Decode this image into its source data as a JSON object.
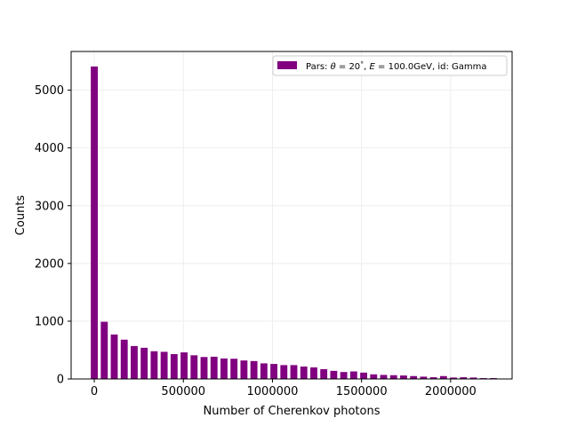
{
  "chart_data": {
    "type": "bar",
    "xlabel": "Number of Cherenkov photons",
    "ylabel": "Counts",
    "xlim": [
      -130000,
      2345000
    ],
    "ylim": [
      0,
      5670
    ],
    "grid": true,
    "legend_position": "top-right",
    "bar_color": "#800080",
    "bin_width": 56000,
    "bar_width_fraction": 0.7,
    "xticks": [
      0,
      500000,
      1000000,
      1500000,
      2000000
    ],
    "xtick_labels": [
      "0",
      "500000",
      "1000000",
      "1500000",
      "2000000"
    ],
    "yticks": [
      0,
      1000,
      2000,
      3000,
      4000,
      5000
    ],
    "ytick_labels": [
      "0",
      "1000",
      "2000",
      "3000",
      "4000",
      "5000"
    ],
    "legend": {
      "label_prefix": "Pars: ",
      "theta_symbol": "θ",
      "theta_value": " = 20",
      "degree": "°",
      "sep1": ", ",
      "energy_symbol": "E",
      "energy_value": " = 100.0GeV, id: Gamma"
    },
    "series": [
      {
        "x": [
          0,
          56000,
          112000,
          168000,
          224000,
          280000,
          336000,
          392000,
          448000,
          504000,
          560000,
          616000,
          672000,
          728000,
          784000,
          840000,
          896000,
          952000,
          1008000,
          1064000,
          1120000,
          1176000,
          1232000,
          1288000,
          1344000,
          1400000,
          1456000,
          1512000,
          1568000,
          1624000,
          1680000,
          1736000,
          1792000,
          1848000,
          1904000,
          1960000,
          2016000,
          2072000,
          2128000,
          2184000,
          2240000
        ],
        "values": [
          5410,
          990,
          770,
          680,
          570,
          540,
          480,
          470,
          430,
          460,
          410,
          380,
          385,
          355,
          350,
          320,
          310,
          270,
          260,
          240,
          240,
          215,
          200,
          170,
          140,
          120,
          130,
          110,
          80,
          70,
          65,
          60,
          50,
          40,
          30,
          50,
          25,
          30,
          25,
          15,
          15
        ]
      }
    ]
  }
}
